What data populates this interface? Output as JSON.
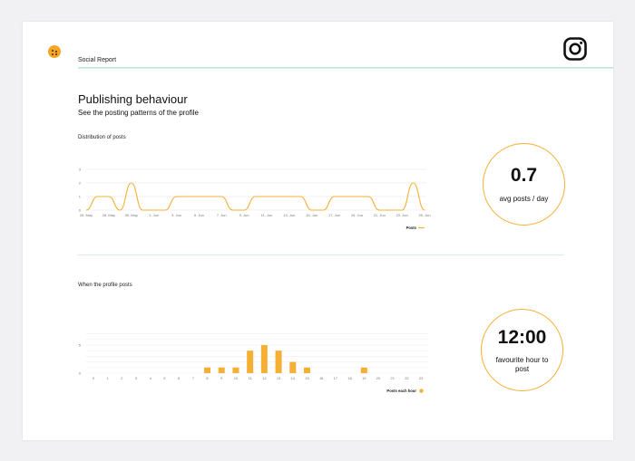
{
  "header": {
    "title": "Social Report"
  },
  "section": {
    "title": "Publishing behaviour",
    "subtitle": "See the posting patterns of the profile"
  },
  "kpis": {
    "avg_posts_value": "0.7",
    "avg_posts_label": "avg posts / day",
    "fav_hour_value": "12:00",
    "fav_hour_label": "favourite hour to post"
  },
  "colors": {
    "accent": "#f5b034",
    "divider": "#bfe6da",
    "background": "#f1f1f3"
  },
  "icons": {
    "brand": "brand-logo-icon",
    "social": "instagram-icon"
  },
  "chart_data": [
    {
      "type": "line",
      "title": "Distribution of posts",
      "x": [
        "26. May",
        "27. May",
        "28. May",
        "29. May",
        "30. May",
        "31. May",
        "1. Jun",
        "2. Jun",
        "3. Jun",
        "4. Jun",
        "5. Jun",
        "6. Jun",
        "7. Jun",
        "8. Jun",
        "9. Jun",
        "10. Jun",
        "11. Jun",
        "12. Jun",
        "13. Jun",
        "14. Jun",
        "15. Jun",
        "16. Jun",
        "17. Jun",
        "18. Jun",
        "19. Jun",
        "20. Jun",
        "21. Jun",
        "22. Jun",
        "23. Jun",
        "24. Jun",
        "25. Jun"
      ],
      "x_tick_labels": [
        "26. May",
        "28. May",
        "30. May",
        "1. Jun",
        "3. Jun",
        "5. Jun",
        "7. Jun",
        "9. Jun",
        "11. Jun",
        "13. Jun",
        "15. Jun",
        "17. Jun",
        "19. Jun",
        "21. Jun",
        "23. Jun",
        "25. Jun"
      ],
      "series": [
        {
          "name": "Posts",
          "values": [
            0,
            1,
            1,
            0,
            2,
            0,
            0,
            0,
            1,
            1,
            1,
            1,
            1,
            0,
            0,
            1,
            1,
            1,
            1,
            1,
            0,
            0,
            1,
            1,
            1,
            1,
            0,
            0,
            0,
            2,
            0
          ]
        }
      ],
      "y_ticks": [
        0,
        1,
        2,
        3
      ],
      "ylim": [
        0,
        3
      ],
      "legend": "bottom-right",
      "grid": true
    },
    {
      "type": "bar",
      "title": "When the profile posts",
      "categories": [
        "0",
        "1",
        "2",
        "3",
        "4",
        "5",
        "6",
        "7",
        "8",
        "9",
        "10",
        "11",
        "12",
        "13",
        "14",
        "15",
        "16",
        "17",
        "18",
        "19",
        "20",
        "21",
        "22",
        "23"
      ],
      "series": [
        {
          "name": "Posts each hour",
          "values": [
            0,
            0,
            0,
            0,
            0,
            0,
            0,
            0,
            1,
            1,
            1,
            4,
            5,
            4,
            2,
            1,
            0,
            0,
            0,
            1,
            0,
            0,
            0,
            0
          ]
        }
      ],
      "y_ticks": [
        0,
        5
      ],
      "ylim": [
        0,
        7
      ],
      "legend": "bottom-right",
      "grid": true
    }
  ]
}
